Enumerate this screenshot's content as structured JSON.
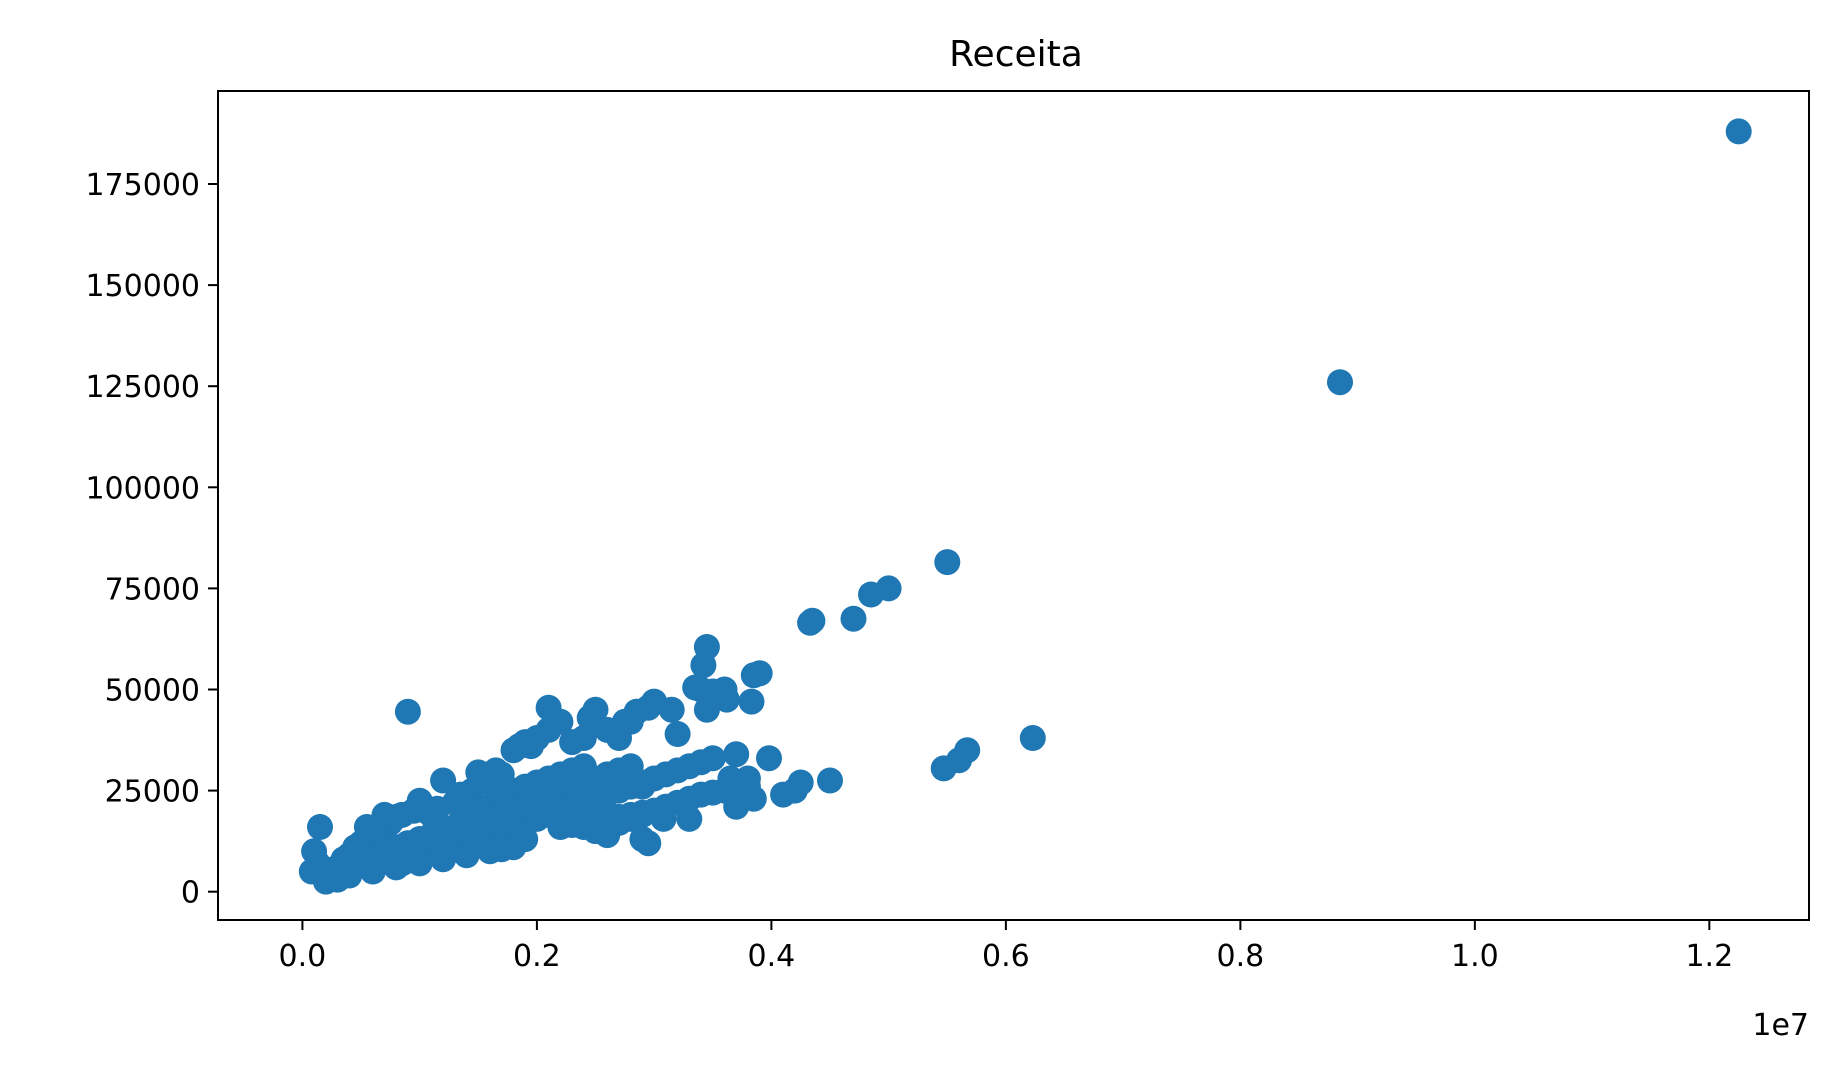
{
  "chart_data": {
    "type": "scatter",
    "title": "Receita",
    "xlabel": "",
    "ylabel": "",
    "x_offset_label": "1e7",
    "xlim": [
      -720000,
      12850000
    ],
    "ylim": [
      -7000,
      198000
    ],
    "x_ticks": [
      0,
      2000000,
      4000000,
      6000000,
      8000000,
      10000000,
      12000000
    ],
    "x_tick_labels": [
      "0.0",
      "0.2",
      "0.4",
      "0.6",
      "0.8",
      "1.0",
      "1.2"
    ],
    "y_ticks": [
      0,
      25000,
      50000,
      75000,
      100000,
      125000,
      150000,
      175000
    ],
    "y_tick_labels": [
      "0",
      "25000",
      "50000",
      "75000",
      "100000",
      "125000",
      "150000",
      "175000"
    ],
    "grid": false,
    "color": "#1f77b4",
    "series": [
      {
        "x": [
          12250000,
          8850000,
          5500000,
          5000000,
          4850000,
          4700000,
          4350000,
          4330000,
          6230000,
          5670000,
          5600000,
          5470000,
          4500000,
          4250000,
          4100000,
          4200000,
          3980000,
          3900000,
          3850000,
          3830000,
          3800000,
          3700000,
          3850000,
          3650000,
          3620000,
          3600000,
          3500000,
          3420000,
          3450000,
          3450000,
          3400000,
          3350000,
          3300000,
          3200000,
          3150000,
          3080000,
          3000000,
          2950000,
          2900000,
          2850000,
          2800000,
          2750000,
          2700000,
          2600000,
          2500000,
          2450000,
          2400000,
          2300000,
          2200000,
          2100000,
          2100000,
          2000000,
          1950000,
          1900000,
          1850000,
          1800000,
          1700000,
          1650000,
          1600000,
          1500000,
          1450000,
          1400000,
          1350000,
          1300000,
          1200000,
          1150000,
          1100000,
          1050000,
          1000000,
          950000,
          900000,
          850000,
          800000,
          750000,
          700000,
          650000,
          600000,
          550000,
          500000,
          450000,
          400000,
          350000,
          300000,
          250000,
          200000,
          150000,
          100000,
          130000,
          80000,
          850000,
          900000,
          1000000,
          1100000,
          1200000,
          1300000,
          1400000,
          1500000,
          1600000,
          1700000,
          1800000,
          1900000,
          2000000,
          2100000,
          2200000,
          2300000,
          2400000,
          2500000,
          2600000,
          2700000,
          2800000,
          2900000,
          3000000,
          3100000,
          3200000,
          3300000,
          3400000,
          3500000,
          3700000,
          2950000,
          2900000,
          2600000,
          2500000,
          2400000,
          2300000,
          2200000,
          2000000,
          1900000,
          1800000,
          1700000,
          1600000,
          1400000,
          1200000,
          1000000,
          800000,
          600000,
          400000,
          300000,
          200000,
          1900000,
          2000000,
          2100000,
          2200000,
          2300000,
          2400000,
          2500000,
          2600000,
          2700000,
          2800000,
          1800000,
          1900000,
          2000000,
          2100000,
          2200000,
          2300000,
          2400000,
          1500000,
          1600000,
          1700000,
          1800000,
          1900000,
          2000000,
          2100000,
          2200000,
          2300000,
          1200000,
          1300000,
          1400000,
          1500000,
          1600000,
          1700000,
          1800000,
          1900000,
          2000000,
          2100000,
          1000000,
          1100000,
          1200000,
          1300000,
          1400000,
          1500000,
          1600000,
          1700000,
          1800000,
          700000,
          800000,
          900000,
          1000000,
          1100000,
          1200000,
          1300000,
          1400000,
          1500000,
          500000,
          600000,
          700000,
          800000,
          900000,
          1000000,
          1100000,
          2800000,
          2900000,
          3000000,
          3100000,
          3200000,
          3300000,
          3400000,
          3500000,
          3600000,
          3700000,
          3800000,
          2500000,
          2600000,
          2700000,
          2800000,
          2900000,
          3000000,
          3100000,
          2200000,
          2300000,
          2400000,
          2500000,
          2600000,
          2700000
        ],
        "y": [
          188000,
          126000,
          81500,
          75000,
          73500,
          67500,
          67000,
          66500,
          38000,
          35000,
          32500,
          30500,
          27500,
          27000,
          24000,
          25000,
          33000,
          54000,
          53500,
          47000,
          28000,
          21000,
          23000,
          28000,
          47500,
          50000,
          49500,
          56000,
          45000,
          60500,
          50000,
          50500,
          18000,
          39000,
          45000,
          18000,
          47000,
          45500,
          26000,
          44500,
          42000,
          42000,
          38000,
          40000,
          45000,
          43000,
          38000,
          37000,
          42000,
          45500,
          40000,
          38000,
          36000,
          37000,
          36000,
          35000,
          29000,
          30000,
          27000,
          29500,
          25000,
          22000,
          24000,
          22000,
          27500,
          20500,
          19000,
          20000,
          22500,
          20000,
          44500,
          19000,
          18500,
          17000,
          19000,
          15000,
          15500,
          16000,
          12000,
          11000,
          9000,
          8000,
          6000,
          5000,
          5500,
          16000,
          10000,
          7000,
          5000,
          7000,
          8000,
          9000,
          10000,
          11000,
          12000,
          13000,
          14000,
          15000,
          16000,
          16500,
          17000,
          18000,
          19000,
          20000,
          21000,
          22000,
          23000,
          24000,
          25000,
          26000,
          27000,
          28000,
          29000,
          30000,
          31000,
          32000,
          33000,
          34000,
          12000,
          13000,
          14000,
          15000,
          16000,
          17000,
          18000,
          19000,
          13000,
          11000,
          10500,
          10000,
          9000,
          8000,
          7000,
          6000,
          5000,
          4000,
          3000,
          2500,
          22000,
          23000,
          24000,
          25000,
          26000,
          27000,
          28000,
          29000,
          30000,
          31000,
          25000,
          26000,
          27000,
          28000,
          29000,
          30000,
          31000,
          20000,
          21000,
          22000,
          23000,
          24000,
          25000,
          26000,
          27000,
          28000,
          14000,
          15000,
          16000,
          17000,
          18000,
          19000,
          20000,
          21000,
          22000,
          23000,
          12000,
          13000,
          14000,
          15000,
          16000,
          17000,
          18000,
          19000,
          20000,
          10000,
          11000,
          12000,
          13000,
          14000,
          15000,
          16000,
          17000,
          18000,
          8000,
          9000,
          10000,
          11000,
          12000,
          13000,
          14000,
          19000,
          19500,
          20000,
          21000,
          22000,
          23000,
          24000,
          24500,
          25000,
          25500,
          26000,
          15000,
          16000,
          17000,
          18000,
          19000,
          20000,
          21000,
          16000,
          16500,
          17000,
          17500,
          18000,
          18500
        ]
      }
    ]
  }
}
